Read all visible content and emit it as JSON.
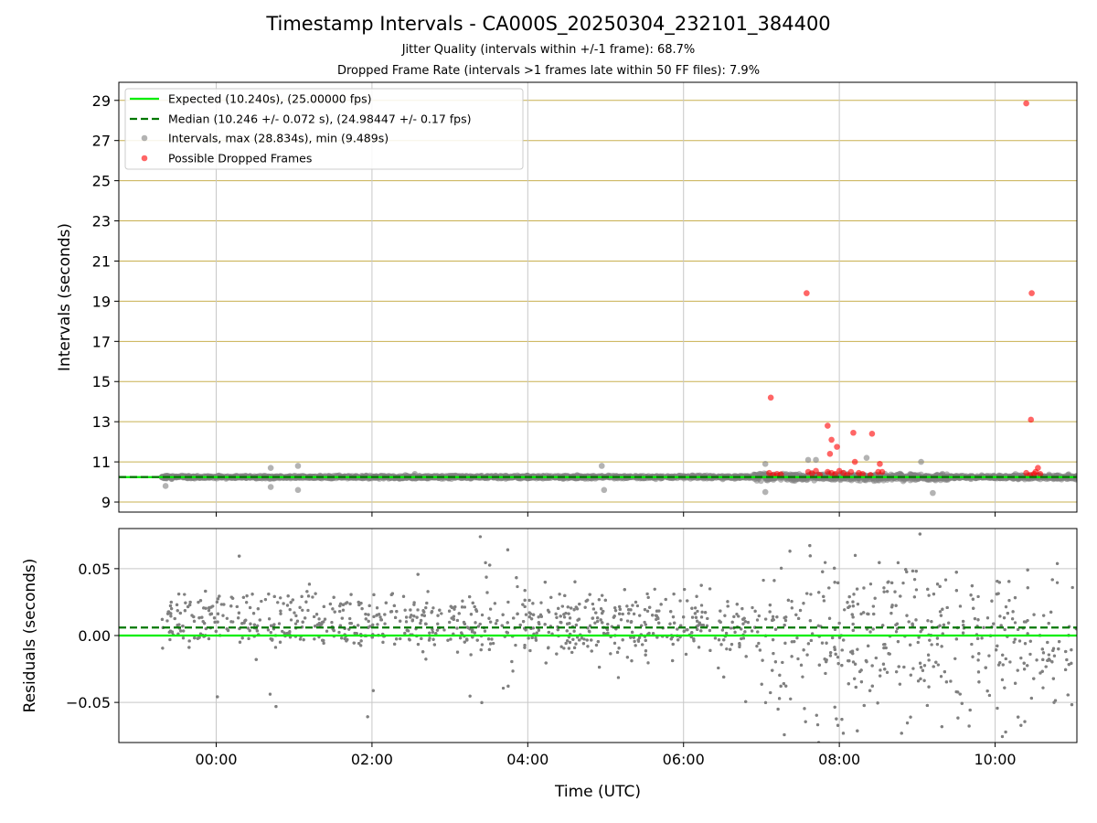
{
  "title": "Timestamp Intervals - CA000S_20250304_232101_384400",
  "subtitle1": "Jitter Quality (intervals within +/-1 frame): 68.7%",
  "subtitle2": "Dropped Frame Rate (intervals >1 frames late within 50 FF files): 7.9%",
  "colors": {
    "expected": "#00ee00",
    "median": "#007700",
    "intervals": "#808080",
    "dropped": "#ff0000",
    "hgrid_top": "#c8b050",
    "grid": "#c8c8c8"
  },
  "chart_data": [
    {
      "type": "scatter",
      "ylabel": "Intervals (seconds)",
      "xlabel": "",
      "xlim_hours": [
        -1.25,
        11.05
      ],
      "ylim": [
        8.5,
        29.9
      ],
      "xticks": [
        0,
        2,
        4,
        6,
        8,
        10
      ],
      "xtick_labels": [
        "00:00",
        "02:00",
        "04:00",
        "06:00",
        "08:00",
        "10:00"
      ],
      "yticks": [
        9,
        11,
        13,
        15,
        17,
        19,
        21,
        23,
        25,
        27,
        29
      ],
      "ytick_labels": [
        "9",
        "11",
        "13",
        "15",
        "17",
        "19",
        "21",
        "23",
        "25",
        "27",
        "29"
      ],
      "grid": true,
      "legend_position": "top-left",
      "expected": 10.24,
      "median": 10.246,
      "legend": [
        "Expected (10.240s), (25.00000 fps)",
        "Median (10.246 +/- 0.072 s), (24.98447 +/- 0.17 fps)",
        "Intervals, max (28.834s), min (9.489s)",
        "Possible Dropped Frames"
      ],
      "series": [
        {
          "name": "Intervals, max (28.834s), min (9.489s)",
          "x_start": -0.7,
          "x_end": 11.05,
          "points": [
            [
              -0.65,
              9.8
            ],
            [
              0.7,
              10.7
            ],
            [
              0.7,
              9.75
            ],
            [
              1.05,
              10.8
            ],
            [
              1.05,
              9.6
            ],
            [
              2.55,
              10.4
            ],
            [
              4.95,
              10.8
            ],
            [
              4.98,
              9.6
            ],
            [
              7.05,
              10.9
            ],
            [
              7.05,
              9.5
            ],
            [
              7.6,
              11.1
            ],
            [
              7.7,
              11.1
            ],
            [
              8.35,
              11.2
            ],
            [
              9.05,
              11.0
            ],
            [
              9.2,
              9.45
            ],
            [
              10.3,
              10.3
            ]
          ]
        },
        {
          "name": "Possible Dropped Frames",
          "points": [
            [
              7.12,
              14.2
            ],
            [
              7.58,
              19.4
            ],
            [
              7.85,
              12.8
            ],
            [
              7.9,
              12.1
            ],
            [
              7.88,
              11.4
            ],
            [
              7.97,
              11.75
            ],
            [
              8.18,
              12.45
            ],
            [
              8.42,
              12.4
            ],
            [
              8.2,
              11.0
            ],
            [
              8.52,
              10.9
            ],
            [
              10.4,
              28.85
            ],
            [
              10.47,
              19.4
            ],
            [
              10.46,
              13.1
            ],
            [
              10.55,
              10.7
            ],
            [
              7.1,
              10.45
            ],
            [
              7.15,
              10.35
            ],
            [
              7.2,
              10.4
            ],
            [
              7.25,
              10.38
            ],
            [
              7.6,
              10.5
            ],
            [
              7.65,
              10.42
            ],
            [
              7.7,
              10.55
            ],
            [
              7.75,
              10.35
            ],
            [
              7.85,
              10.5
            ],
            [
              7.9,
              10.45
            ],
            [
              7.95,
              10.4
            ],
            [
              8.0,
              10.55
            ],
            [
              8.05,
              10.45
            ],
            [
              8.1,
              10.35
            ],
            [
              8.15,
              10.5
            ],
            [
              8.25,
              10.45
            ],
            [
              8.3,
              10.4
            ],
            [
              8.4,
              10.35
            ],
            [
              8.5,
              10.5
            ],
            [
              8.55,
              10.5
            ],
            [
              10.4,
              10.45
            ],
            [
              10.45,
              10.35
            ],
            [
              10.5,
              10.4
            ],
            [
              10.52,
              10.5
            ],
            [
              10.58,
              10.4
            ]
          ]
        }
      ]
    },
    {
      "type": "scatter",
      "ylabel": "Residuals (seconds)",
      "xlabel": "Time (UTC)",
      "xlim_hours": [
        -1.25,
        11.05
      ],
      "ylim": [
        -0.08,
        0.08
      ],
      "xticks": [
        0,
        2,
        4,
        6,
        8,
        10
      ],
      "xtick_labels": [
        "00:00",
        "02:00",
        "04:00",
        "06:00",
        "08:00",
        "10:00"
      ],
      "yticks": [
        -0.05,
        0.0,
        0.05
      ],
      "ytick_labels": [
        "−0.05",
        "0.00",
        "0.05"
      ],
      "grid": true,
      "expected_residual": 0.0,
      "median_residual": 0.006
    }
  ]
}
